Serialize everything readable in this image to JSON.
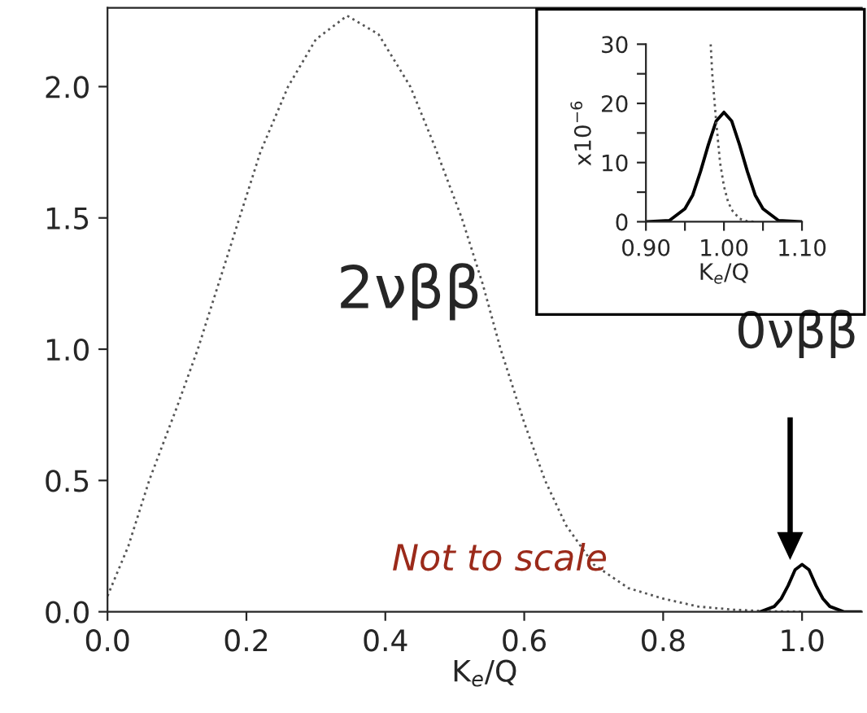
{
  "chart_data": [
    {
      "type": "line",
      "xlabel": "K$_{e}$/Q",
      "xlim": [
        0,
        1.086
      ],
      "ylim": [
        0,
        2.3
      ],
      "xticks": [
        {
          "value": 0,
          "label": "0.0"
        },
        {
          "value": 0.2,
          "label": "0.2"
        },
        {
          "value": 0.4,
          "label": "0.4"
        },
        {
          "value": 0.6,
          "label": "0.6"
        },
        {
          "value": 0.8,
          "label": "0.8"
        },
        {
          "value": 1.0,
          "label": "1.0"
        }
      ],
      "yticks": [
        {
          "value": 0,
          "label": "0.0"
        },
        {
          "value": 0.5,
          "label": "0.5"
        },
        {
          "value": 1.0,
          "label": "1.0"
        },
        {
          "value": 1.5,
          "label": "1.5"
        },
        {
          "value": 2.0,
          "label": "2.0"
        }
      ],
      "marker": "none",
      "grid": false,
      "legend": false,
      "series": [
        {
          "color": "#555555",
          "line_style": "dotted",
          "x": [
            0,
            0.03,
            0.06,
            0.1,
            0.13,
            0.16,
            0.19,
            0.22,
            0.26,
            0.3,
            0.345,
            0.39,
            0.436,
            0.47,
            0.51,
            0.54,
            0.566,
            0.6,
            0.63,
            0.66,
            0.7,
            0.75,
            0.8,
            0.85,
            0.9,
            0.95,
            1.0
          ],
          "values": [
            0.06,
            0.25,
            0.5,
            0.78,
            1.0,
            1.25,
            1.5,
            1.75,
            2.0,
            2.18,
            2.27,
            2.2,
            2.0,
            1.78,
            1.5,
            1.25,
            1.0,
            0.72,
            0.5,
            0.33,
            0.18,
            0.09,
            0.05,
            0.02,
            0.008,
            0.002,
            0
          ]
        },
        {
          "color": "#000000",
          "line_style": "solid",
          "x": [
            0.94,
            0.96,
            0.97,
            0.98,
            0.99,
            1.0,
            1.01,
            1.02,
            1.03,
            1.04,
            1.06,
            1.086
          ],
          "values": [
            0,
            0.02,
            0.05,
            0.1,
            0.16,
            0.18,
            0.16,
            0.1,
            0.05,
            0.02,
            0,
            0
          ]
        }
      ],
      "annotations": [
        "2νββ",
        "0νββ",
        "Not to scale"
      ]
    },
    {
      "type": "line",
      "xlabel": "K$_{e}$/Q",
      "ylabel": "x10$^{−6}$",
      "xlim": [
        0.9,
        1.1
      ],
      "ylim": [
        0,
        30
      ],
      "xticks": [
        {
          "value": 0.9,
          "label": "0.90"
        },
        {
          "value": 0.95,
          "label": null
        },
        {
          "value": 1.0,
          "label": "1.00"
        },
        {
          "value": 1.05,
          "label": null
        },
        {
          "value": 1.1,
          "label": "1.10"
        }
      ],
      "yticks": [
        0,
        {
          "value": 5,
          "label": null
        },
        10,
        {
          "value": 15,
          "label": null
        },
        20,
        {
          "value": 25,
          "label": null
        },
        30
      ],
      "marker": "none",
      "grid": false,
      "legend": false,
      "series": [
        {
          "color": "#000000",
          "line_style": "solid",
          "x": [
            0.9,
            0.93,
            0.95,
            0.96,
            0.97,
            0.98,
            0.99,
            1.0,
            1.01,
            1.02,
            1.03,
            1.04,
            1.05,
            1.07,
            1.1
          ],
          "values": [
            0,
            0.2,
            2.2,
            4.5,
            8.5,
            13,
            17,
            18.5,
            17,
            13,
            8.5,
            4.5,
            2.2,
            0.2,
            0
          ]
        },
        {
          "color": "#555555",
          "line_style": "dotted",
          "x": [
            0.983,
            0.985,
            0.99,
            0.995,
            1.0,
            1.005,
            1.01,
            1.02,
            1.03,
            1.04
          ],
          "values": [
            30,
            25,
            17,
            10,
            6,
            3.5,
            2,
            0.5,
            0.1,
            0
          ]
        }
      ]
    }
  ]
}
